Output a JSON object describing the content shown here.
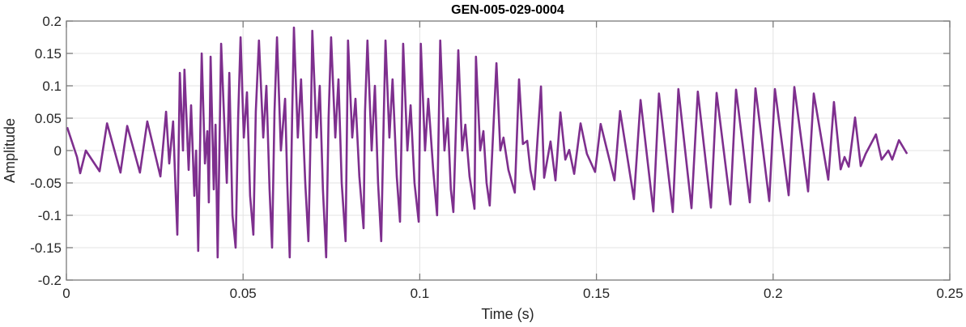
{
  "chart_data": {
    "type": "line",
    "title": "GEN-005-029-0004",
    "xlabel": "Time (s)",
    "ylabel": "Amplitude",
    "xlim": [
      0,
      0.25
    ],
    "ylim": [
      -0.2,
      0.2
    ],
    "grid": true,
    "xticks": [
      0,
      0.05,
      0.1,
      0.15,
      0.2,
      0.25
    ],
    "xtick_labels": [
      "0",
      "0.05",
      "0.1",
      "0.15",
      "0.2",
      "0.25"
    ],
    "yticks": [
      0.2,
      0.15,
      0.1,
      0.05,
      0,
      -0.05,
      -0.1,
      -0.15,
      -0.2
    ],
    "ytick_labels": [
      "0.2",
      "0.15",
      "0.1",
      "0.05",
      "0",
      "-0.05",
      "-0.1",
      "-0.15",
      "-0.2"
    ],
    "series": [
      {
        "name": "Amplitude",
        "color": "#7E2F8E",
        "t": [
          0.0002,
          0.003,
          0.0039,
          0.0055,
          0.0094,
          0.0115,
          0.0153,
          0.0172,
          0.0208,
          0.0229,
          0.0266,
          0.0282,
          0.0291,
          0.0302,
          0.0309,
          0.0314,
          0.0321,
          0.033,
          0.0334,
          0.0346,
          0.0353,
          0.0362,
          0.0367,
          0.0373,
          0.0383,
          0.0392,
          0.0399,
          0.0403,
          0.0408,
          0.0417,
          0.0422,
          0.0428,
          0.0438,
          0.0447,
          0.0454,
          0.0461,
          0.047,
          0.0479,
          0.0486,
          0.0493,
          0.0502,
          0.0511,
          0.052,
          0.0529,
          0.0536,
          0.0545,
          0.0557,
          0.0566,
          0.0575,
          0.0582,
          0.0589,
          0.0596,
          0.0607,
          0.0619,
          0.0625,
          0.0632,
          0.0639,
          0.0644,
          0.0655,
          0.0664,
          0.0676,
          0.0685,
          0.0692,
          0.0696,
          0.0708,
          0.0717,
          0.0726,
          0.0735,
          0.0742,
          0.0749,
          0.0761,
          0.077,
          0.0779,
          0.079,
          0.0797,
          0.0809,
          0.0818,
          0.0829,
          0.0841,
          0.0845,
          0.0852,
          0.0864,
          0.0873,
          0.0882,
          0.0891,
          0.0898,
          0.0903,
          0.0914,
          0.0923,
          0.0935,
          0.0944,
          0.0953,
          0.0965,
          0.0974,
          0.0985,
          0.0997,
          0.1003,
          0.1015,
          0.1024,
          0.1038,
          0.1049,
          0.1058,
          0.107,
          0.1079,
          0.1088,
          0.1095,
          0.1109,
          0.112,
          0.1129,
          0.1141,
          0.1155,
          0.1159,
          0.1171,
          0.118,
          0.1189,
          0.1198,
          0.1217,
          0.1228,
          0.1237,
          0.1251,
          0.1269,
          0.1281,
          0.1292,
          0.1304,
          0.1313,
          0.1324,
          0.1343,
          0.1352,
          0.137,
          0.1384,
          0.1398,
          0.1412,
          0.1423,
          0.1437,
          0.1455,
          0.1473,
          0.1496,
          0.1512,
          0.1551,
          0.1567,
          0.1606,
          0.1625,
          0.1661,
          0.1677,
          0.1716,
          0.1732,
          0.1769,
          0.1787,
          0.1824,
          0.184,
          0.1879,
          0.1895,
          0.1934,
          0.195,
          0.1989,
          0.2005,
          0.2044,
          0.206,
          0.2099,
          0.2115,
          0.2156,
          0.2172,
          0.2191,
          0.2202,
          0.2214,
          0.2232,
          0.2248,
          0.2262,
          0.2291,
          0.2307,
          0.2326,
          0.2337,
          0.2356,
          0.2379
        ],
        "y": [
          0.036,
          -0.01,
          -0.035,
          0.0,
          -0.032,
          0.042,
          -0.034,
          0.038,
          -0.034,
          0.045,
          -0.04,
          0.06,
          -0.02,
          0.045,
          -0.06,
          -0.13,
          0.12,
          0.0,
          0.125,
          -0.03,
          0.07,
          -0.07,
          0.0,
          -0.155,
          0.15,
          -0.02,
          0.03,
          -0.08,
          0.145,
          -0.06,
          0.04,
          -0.165,
          0.165,
          0.04,
          -0.05,
          0.12,
          -0.1,
          -0.15,
          0.05,
          0.175,
          0.02,
          0.09,
          -0.07,
          -0.13,
          0.06,
          0.17,
          0.02,
          0.1,
          -0.06,
          -0.15,
          0.06,
          0.175,
          0.0,
          0.08,
          -0.05,
          -0.165,
          0.06,
          0.19,
          0.02,
          0.11,
          -0.05,
          -0.14,
          0.05,
          0.185,
          0.02,
          0.1,
          -0.06,
          -0.165,
          0.05,
          0.175,
          0.02,
          0.11,
          -0.05,
          -0.14,
          0.17,
          0.02,
          0.08,
          -0.04,
          -0.12,
          0.06,
          0.17,
          0.0,
          0.1,
          -0.05,
          -0.14,
          0.05,
          0.17,
          0.02,
          0.11,
          -0.04,
          -0.11,
          0.165,
          0.0,
          0.07,
          -0.05,
          -0.11,
          0.165,
          0.0,
          0.08,
          -0.03,
          -0.1,
          0.17,
          0.0,
          0.05,
          -0.06,
          -0.095,
          0.155,
          0.0,
          0.04,
          -0.04,
          -0.09,
          0.145,
          0.0,
          0.03,
          -0.05,
          -0.085,
          0.135,
          0.0,
          0.02,
          -0.03,
          -0.065,
          0.11,
          0.01,
          0.015,
          -0.03,
          -0.06,
          0.099,
          -0.042,
          0.014,
          -0.046,
          0.059,
          -0.014,
          0.001,
          -0.036,
          0.042,
          -0.005,
          -0.033,
          0.041,
          -0.046,
          0.061,
          -0.075,
          0.078,
          -0.094,
          0.088,
          -0.095,
          0.095,
          -0.089,
          0.091,
          -0.088,
          0.089,
          -0.083,
          0.094,
          -0.08,
          0.096,
          -0.078,
          0.095,
          -0.069,
          0.098,
          -0.063,
          0.088,
          -0.045,
          0.075,
          -0.029,
          -0.01,
          -0.025,
          0.051,
          -0.024,
          -0.005,
          0.025,
          -0.014,
          0.0,
          -0.014,
          0.016,
          -0.005
        ]
      }
    ]
  }
}
